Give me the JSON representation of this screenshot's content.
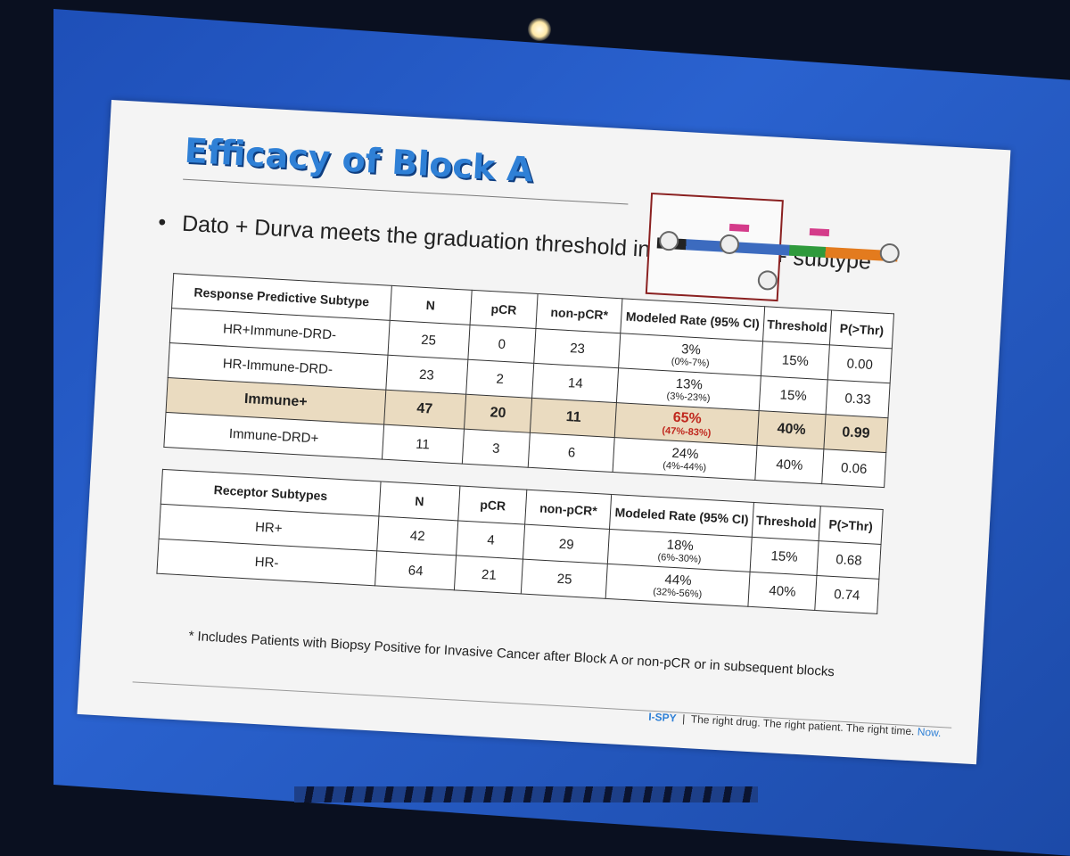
{
  "slide": {
    "title": "Efficacy of Block A",
    "bullet": "Dato + Durva meets the graduation threshold in the Immune+ subtype",
    "footnote": "* Includes Patients with Biopsy Positive for Invasive Cancer after Block A or non-pCR or in subsequent blocks",
    "footer": {
      "brand": "I-SPY",
      "separator": "|",
      "tagline": "The right drug. The right patient. The right time.",
      "now": "Now."
    }
  },
  "colors": {
    "title": "#2f80d6",
    "highlight_row": "#eadbc0",
    "highlight_text": "#c0281e",
    "screen": "#2a62cf"
  },
  "table1": {
    "headers": [
      "Response Predictive Subtype",
      "N",
      "pCR",
      "non-pCR*",
      "Modeled Rate (95% CI)",
      "Threshold",
      "P(>Thr)"
    ],
    "rows": [
      {
        "subtype": "HR+Immune-DRD-",
        "n": "25",
        "pcr": "0",
        "nonpcr": "23",
        "rate": "3%",
        "ci": "(0%-7%)",
        "threshold": "15%",
        "p": "0.00",
        "highlight": false
      },
      {
        "subtype": "HR-Immune-DRD-",
        "n": "23",
        "pcr": "2",
        "nonpcr": "14",
        "rate": "13%",
        "ci": "(3%-23%)",
        "threshold": "15%",
        "p": "0.33",
        "highlight": false
      },
      {
        "subtype": "Immune+",
        "n": "47",
        "pcr": "20",
        "nonpcr": "11",
        "rate": "65%",
        "ci": "(47%-83%)",
        "threshold": "40%",
        "p": "0.99",
        "highlight": true
      },
      {
        "subtype": "Immune-DRD+",
        "n": "11",
        "pcr": "3",
        "nonpcr": "6",
        "rate": "24%",
        "ci": "(4%-44%)",
        "threshold": "40%",
        "p": "0.06",
        "highlight": false
      }
    ]
  },
  "table2": {
    "headers": [
      "Receptor Subtypes",
      "N",
      "pCR",
      "non-pCR*",
      "Modeled Rate (95% CI)",
      "Threshold",
      "P(>Thr)"
    ],
    "rows": [
      {
        "subtype": "HR+",
        "n": "42",
        "pcr": "4",
        "nonpcr": "29",
        "rate": "18%",
        "ci": "(6%-30%)",
        "threshold": "15%",
        "p": "0.68",
        "highlight": false
      },
      {
        "subtype": "HR-",
        "n": "64",
        "pcr": "21",
        "nonpcr": "25",
        "rate": "44%",
        "ci": "(32%-56%)",
        "threshold": "40%",
        "p": "0.74",
        "highlight": false
      }
    ]
  }
}
